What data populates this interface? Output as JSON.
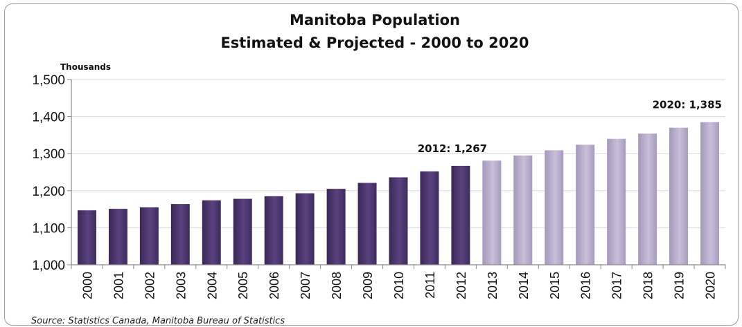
{
  "chart_data": {
    "type": "bar",
    "title": "Manitoba Population",
    "subtitle": "Estimated & Projected - 2000 to 2020",
    "ylabel": "Thousands",
    "xlabel": "",
    "ylim": [
      1000,
      1500
    ],
    "yticks": [
      "1,000",
      "1,100",
      "1,200",
      "1,300",
      "1,400",
      "1,500"
    ],
    "ytick_values": [
      1000,
      1100,
      1200,
      1300,
      1400,
      1500
    ],
    "grid": true,
    "categories": [
      "2000",
      "2001",
      "2002",
      "2003",
      "2004",
      "2005",
      "2006",
      "2007",
      "2008",
      "2009",
      "2010",
      "2011",
      "2012",
      "2013",
      "2014",
      "2015",
      "2016",
      "2017",
      "2018",
      "2019",
      "2020"
    ],
    "series": [
      {
        "values": [
          1147,
          1151,
          1155,
          1164,
          1174,
          1178,
          1185,
          1193,
          1205,
          1221,
          1236,
          1252,
          1267,
          1281,
          1295,
          1309,
          1324,
          1340,
          1354,
          1370,
          1385
        ]
      }
    ],
    "estimated_color": "#4a3468",
    "projected_color": "#b3a8c8",
    "projected_from": "2013",
    "annotations": [
      {
        "category": "2012",
        "text": "2012: 1,267"
      },
      {
        "category": "2020",
        "text": "2020: 1,385"
      }
    ],
    "source": "Source: Statistics Canada, Manitoba Bureau of Statistics"
  }
}
